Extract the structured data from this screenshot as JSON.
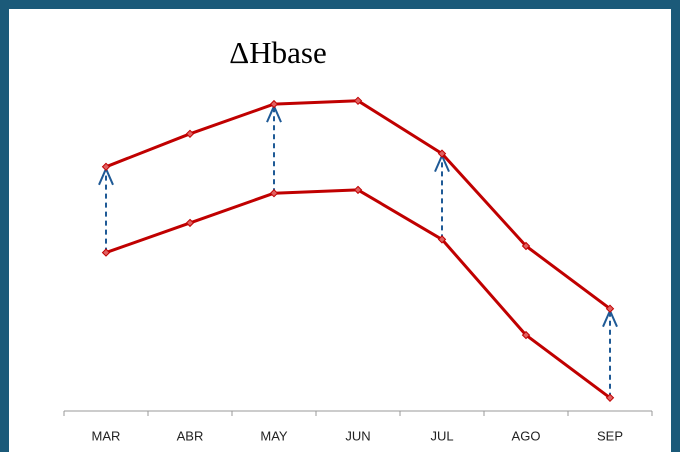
{
  "chart_data": {
    "type": "line",
    "title": "ΔHbase",
    "categories": [
      "MAR",
      "ABR",
      "MAY",
      "JUN",
      "JUL",
      "AGO",
      "SEP"
    ],
    "series": [
      {
        "color": "#c00000",
        "values": [
          74,
          84,
          93,
          94,
          78,
          50,
          31
        ]
      },
      {
        "color": "#c00000",
        "values": [
          48,
          57,
          66,
          67,
          52,
          23,
          4
        ]
      }
    ],
    "ylim": [
      0,
      100
    ],
    "arrow_categories": [
      0,
      2,
      4,
      6
    ],
    "arrow_color": "#1f5a96",
    "grid": false
  }
}
